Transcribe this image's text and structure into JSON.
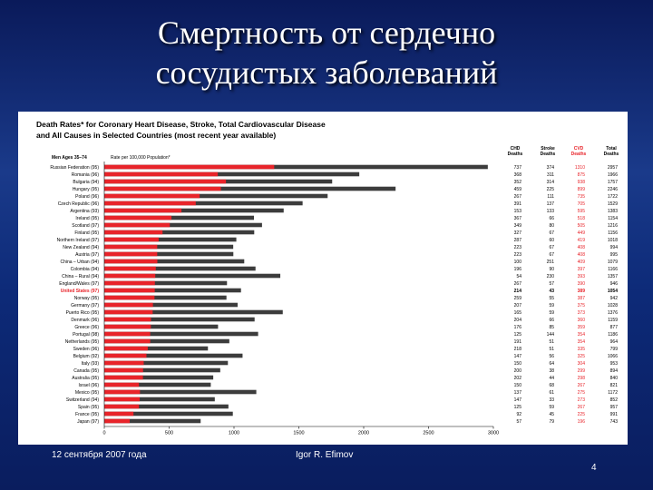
{
  "slide": {
    "title_line1": "Смертность от сердечно",
    "title_line2": "сосудистых заболеваний",
    "footer_date": "12 сентября 2007 года",
    "footer_author": "Igor R. Efimov",
    "page_number": "4"
  },
  "colors": {
    "stroke_cvd": "#e8242a",
    "total": "#3c3c3c",
    "cvd_text": "#e8242a"
  },
  "chart_data": {
    "type": "bar",
    "title_line1": "Death Rates* for Coronary Heart Disease, Stroke, Total Cardiovascular Disease",
    "title_line2": "and All Causes in Selected Countries (most recent year available)",
    "group_label": "Men Ages 35–74",
    "axis_label": "Rate per 100,000 Population*",
    "xlim": [
      0,
      3000
    ],
    "x_ticks": [
      "0",
      "500",
      "1000",
      "1500",
      "2000",
      "2500",
      "3000"
    ],
    "column_headers": [
      [
        "CHD",
        "Deaths"
      ],
      [
        "Stroke",
        "Deaths"
      ],
      [
        "CVD",
        "Deaths"
      ],
      [
        "Total",
        "Deaths"
      ]
    ],
    "countries": [
      "Russian Federation (95)",
      "Romania (96)",
      "Bulgaria (94)",
      "Hungary (95)",
      "Poland (96)",
      "Czech Republic (96)",
      "Argentina (93)",
      "Ireland (95)",
      "Scotland (97)",
      "Finland (95)",
      "Northern Ireland (97)",
      "New Zealand (94)",
      "Austria (97)",
      "China – Urban (94)",
      "Colombia (94)",
      "China – Rural (94)",
      "England/Wales (97)",
      "United States (97)",
      "Norway (95)",
      "Germany (97)",
      "Puerto Rico (95)",
      "Denmark (96)",
      "Greece (96)",
      "Portugal (98)",
      "Netherlands (95)",
      "Sweden (96)",
      "Belgium (92)",
      "Italy (93)",
      "Canada (95)",
      "Australia (95)",
      "Israel (96)",
      "Mexico (95)",
      "Switzerland (94)",
      "Spain (95)",
      "France (95)",
      "Japan (97)"
    ],
    "chd": [
      737,
      368,
      352,
      459,
      267,
      391,
      153,
      367,
      349,
      327,
      287,
      223,
      223,
      100,
      196,
      54,
      267,
      214,
      259,
      207,
      165,
      204,
      176,
      125,
      191,
      218,
      147,
      150,
      200,
      202,
      150,
      137,
      147,
      125,
      92,
      57
    ],
    "stroke": [
      374,
      311,
      314,
      225,
      111,
      137,
      133,
      66,
      80,
      67,
      60,
      67,
      67,
      251,
      90,
      230,
      57,
      43,
      55,
      59,
      59,
      66,
      85,
      144,
      51,
      51,
      56,
      64,
      38,
      44,
      68,
      61,
      33,
      59,
      45,
      79
    ],
    "cvd": [
      1310,
      875,
      938,
      899,
      735,
      705,
      595,
      518,
      505,
      449,
      419,
      408,
      408,
      409,
      397,
      393,
      390,
      389,
      387,
      375,
      373,
      360,
      359,
      354,
      354,
      335,
      325,
      304,
      299,
      298,
      267,
      275,
      273,
      267,
      225,
      196
    ],
    "total": [
      2957,
      1966,
      1757,
      2246,
      1722,
      1529,
      1383,
      1154,
      1216,
      1156,
      1018,
      994,
      995,
      1079,
      1166,
      1357,
      946,
      1054,
      942,
      1028,
      1376,
      1159,
      877,
      1186,
      964,
      799,
      1066,
      953,
      894,
      840,
      821,
      1172,
      852,
      957,
      991,
      743
    ],
    "highlight_index": 17
  }
}
